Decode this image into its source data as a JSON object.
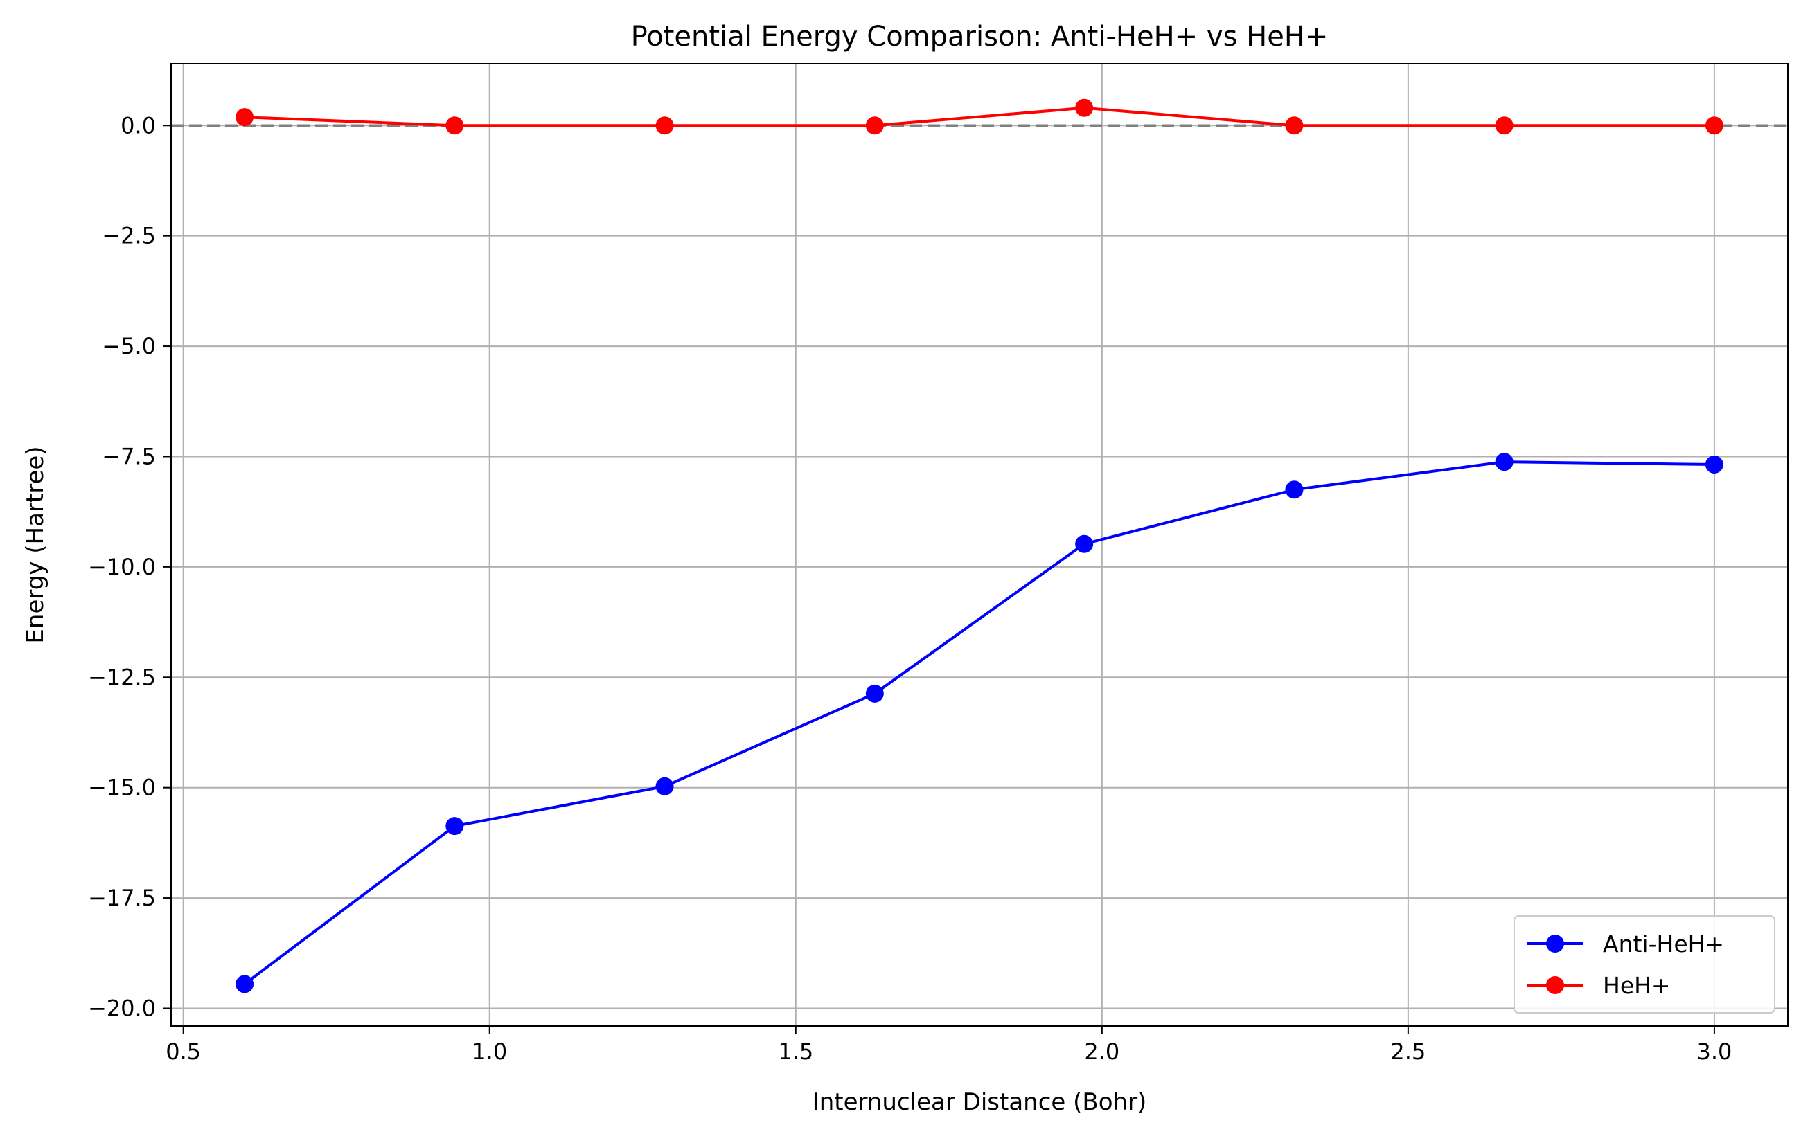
{
  "chart_data": {
    "type": "line",
    "title": "Potential Energy Comparison: Anti-HeH+ vs HeH+",
    "xlabel": "Internuclear Distance (Bohr)",
    "ylabel": "Energy (Hartree)",
    "xlim": [
      0.48,
      3.12
    ],
    "ylim": [
      -20.4,
      1.4
    ],
    "x_ticks": [
      0.5,
      1.0,
      1.5,
      2.0,
      2.5,
      3.0
    ],
    "x_tick_labels": [
      "0.5",
      "1.0",
      "1.5",
      "2.0",
      "2.5",
      "3.0"
    ],
    "y_ticks": [
      0.0,
      -2.5,
      -5.0,
      -7.5,
      -10.0,
      -12.5,
      -15.0,
      -17.5,
      -20.0
    ],
    "y_tick_labels": [
      "0.0",
      "−2.5",
      "−5.0",
      "−7.5",
      "−10.0",
      "−12.5",
      "−15.0",
      "−17.5",
      "−20.0"
    ],
    "grid": true,
    "reference_line": {
      "y": 0.0,
      "style": "dashed",
      "color": "#808080"
    },
    "legend_position": "lower-right",
    "x": [
      0.6,
      0.943,
      1.286,
      1.629,
      1.971,
      2.314,
      2.657,
      3.0
    ],
    "series": [
      {
        "name": "Anti-HeH+",
        "color": "#0000ff",
        "marker": "circle",
        "values": [
          -19.45,
          -15.87,
          -14.97,
          -12.87,
          -9.48,
          -8.25,
          -7.62,
          -7.68
        ]
      },
      {
        "name": "HeH+",
        "color": "#ff0000",
        "marker": "circle",
        "values": [
          0.19,
          0.0,
          0.0,
          0.0,
          0.4,
          0.0,
          0.0,
          0.0
        ]
      }
    ]
  }
}
